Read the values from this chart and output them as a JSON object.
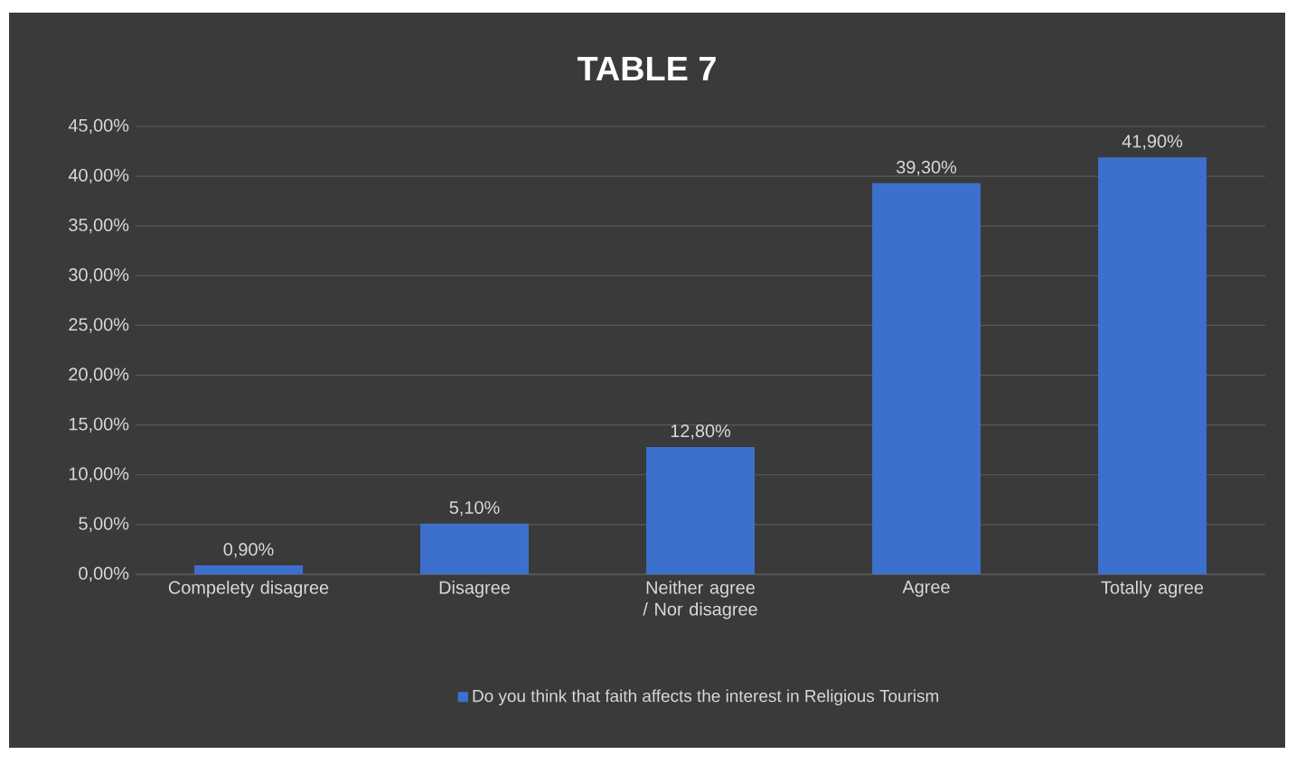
{
  "chart_data": {
    "type": "bar",
    "title": "TABLE 7",
    "categories": [
      "Compelety disagree",
      "Disagree",
      "Neither agree / Nor disagree",
      "Agree",
      "Totally agree"
    ],
    "series": [
      {
        "name": "Do you think that faith affects the interest in Religious Tourism",
        "color": "#3d6fcc",
        "values": [
          0.9,
          5.1,
          12.8,
          39.3,
          41.9
        ],
        "value_labels": [
          "0,90%",
          "5,10%",
          "12,80%",
          "39,30%",
          "41,90%"
        ]
      }
    ],
    "ylim": [
      0,
      45
    ],
    "yticks": [
      {
        "value": 0,
        "label": "0,00%"
      },
      {
        "value": 5,
        "label": "5,00%"
      },
      {
        "value": 10,
        "label": "10,00%"
      },
      {
        "value": 15,
        "label": "15,00%"
      },
      {
        "value": 20,
        "label": "20,00%"
      },
      {
        "value": 25,
        "label": "25,00%"
      },
      {
        "value": 30,
        "label": "30,00%"
      },
      {
        "value": 35,
        "label": "35,00%"
      },
      {
        "value": 40,
        "label": "40,00%"
      },
      {
        "value": 45,
        "label": "45,00%"
      }
    ],
    "grid": "y",
    "legend": "bottom"
  }
}
